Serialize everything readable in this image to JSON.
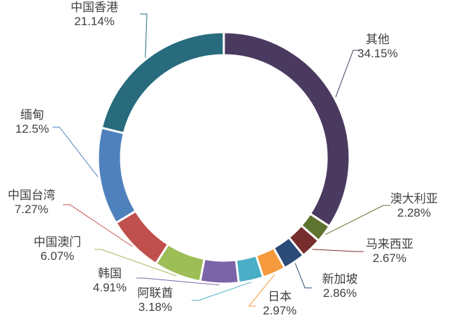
{
  "chart_data": {
    "type": "pie",
    "variant": "doughnut",
    "title": "",
    "legend": "none",
    "slices": [
      {
        "name": "其他",
        "value": 34.15,
        "label": "34.15%",
        "color": "#4b3a60"
      },
      {
        "name": "澳大利亚",
        "value": 2.28,
        "label": "2.28%",
        "color": "#5f7330"
      },
      {
        "name": "马来西亚",
        "value": 2.67,
        "label": "2.67%",
        "color": "#772d2d"
      },
      {
        "name": "新加坡",
        "value": 2.86,
        "label": "2.86%",
        "color": "#2a4a78"
      },
      {
        "name": "日本",
        "value": 2.97,
        "label": "2.97%",
        "color": "#f59a3d"
      },
      {
        "name": "阿联酋",
        "value": 3.18,
        "label": "3.18%",
        "color": "#4aaec7"
      },
      {
        "name": "韩国",
        "value": 4.91,
        "label": "4.91%",
        "color": "#7c64a8"
      },
      {
        "name": "中国澳门",
        "value": 6.07,
        "label": "6.07%",
        "color": "#9dbd57"
      },
      {
        "name": "中国台湾",
        "value": 7.27,
        "label": "7.27%",
        "color": "#c0504d"
      },
      {
        "name": "缅甸",
        "value": 12.5,
        "label": "12.5%",
        "color": "#4f81bd"
      },
      {
        "name": "中国香港",
        "value": 21.14,
        "label": "21.14%",
        "color": "#276b7d"
      }
    ]
  }
}
